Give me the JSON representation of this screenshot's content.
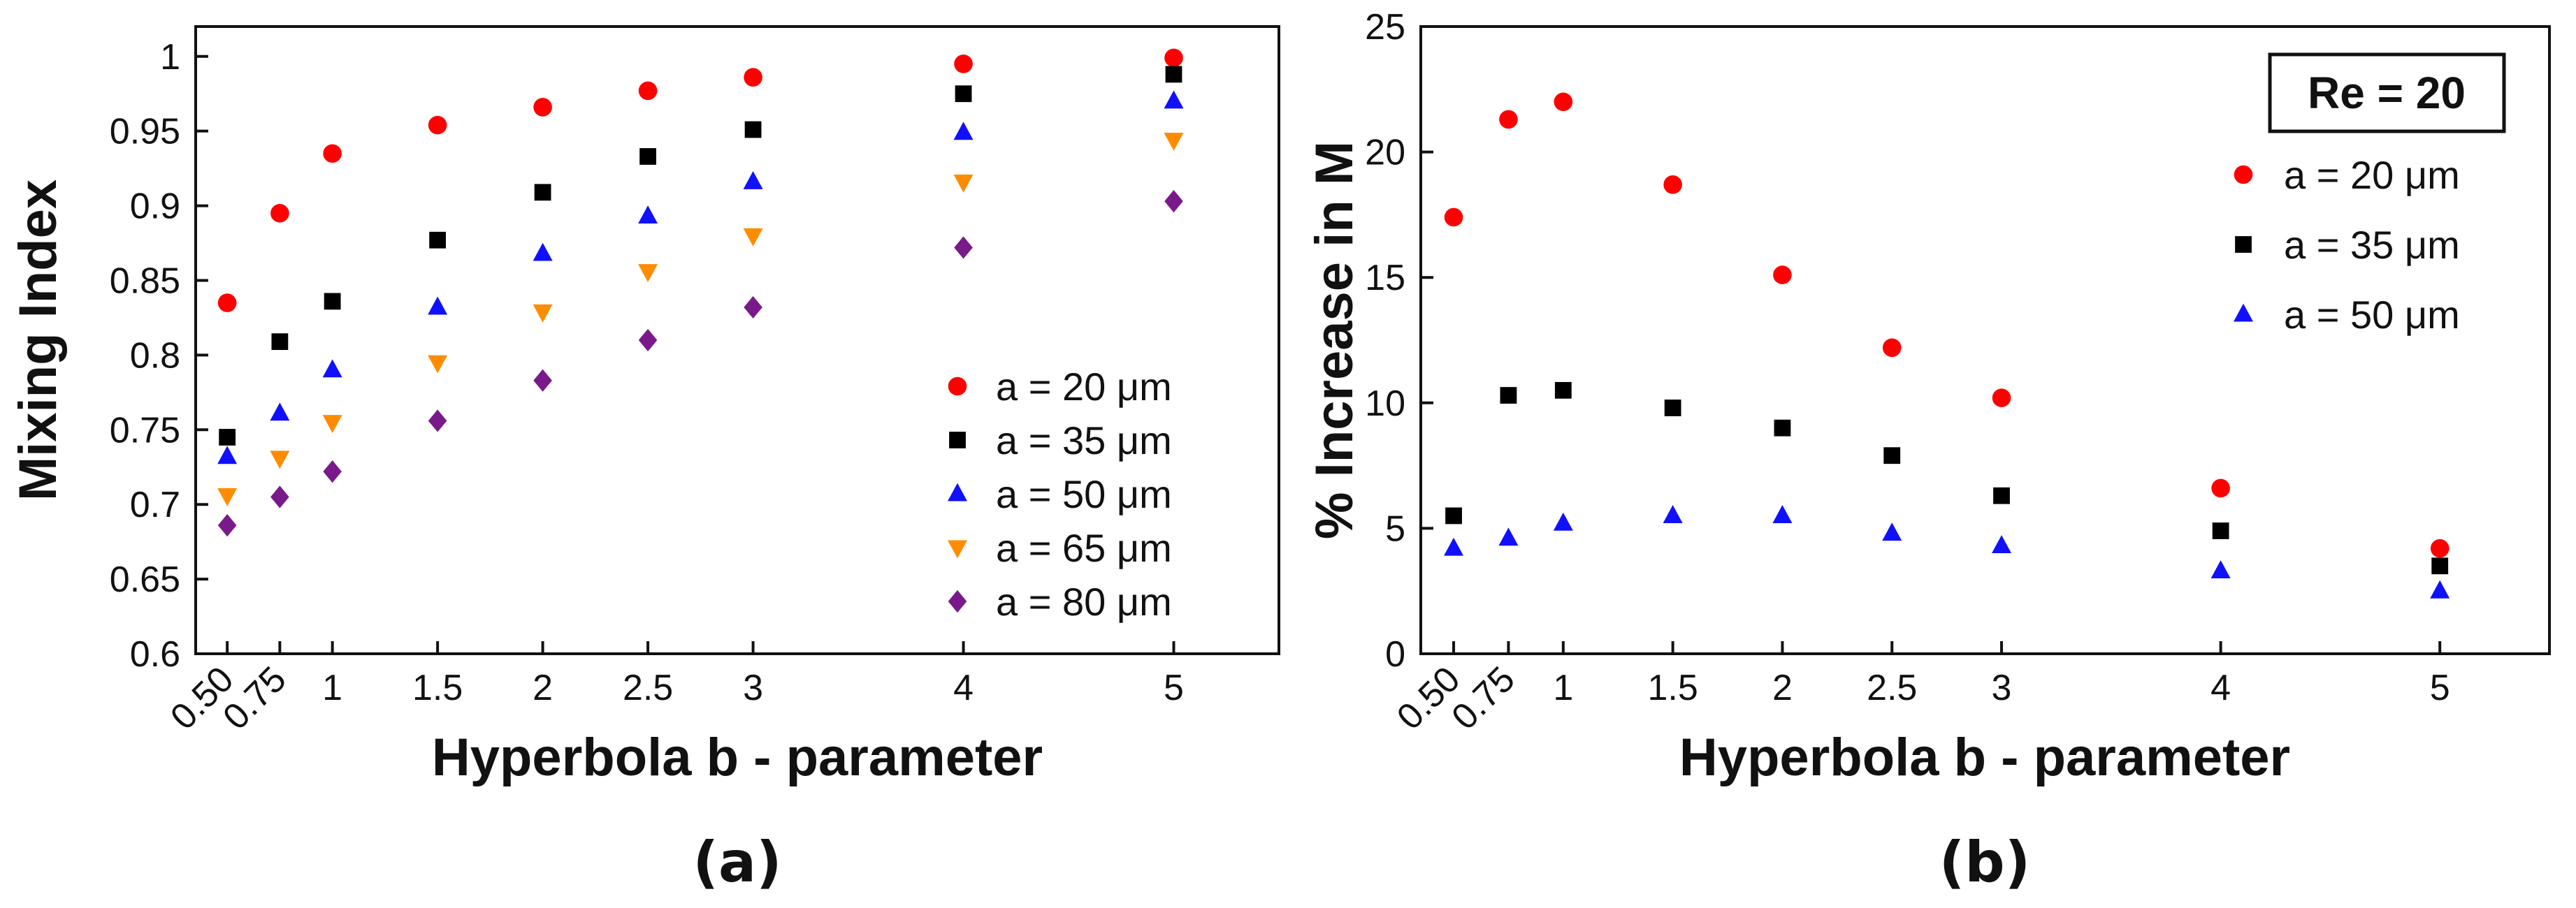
{
  "figure_labels": {
    "a": "(a)",
    "b": "(b)"
  },
  "colors": {
    "a20": "#ff0000",
    "a35": "#000000",
    "a50": "#1010ff",
    "a65": "#ff8c00",
    "a80": "#7a1a8a"
  },
  "chart_data": [
    {
      "type": "scatter",
      "title": "",
      "xlabel": "Hyperbola b - parameter",
      "ylabel": "Mixing Index",
      "ylim": [
        0.6,
        1.02
      ],
      "xlim": [
        0.35,
        5.5
      ],
      "x": [
        0.5,
        0.75,
        1,
        1.5,
        2,
        2.5,
        3,
        4,
        5
      ],
      "xtick_labels": [
        "0.50",
        "0.75",
        "1",
        "1.5",
        "2",
        "2.5",
        "3",
        "4",
        "5"
      ],
      "yticks": [
        0.6,
        0.65,
        0.7,
        0.75,
        0.8,
        0.85,
        0.9,
        0.95,
        1
      ],
      "ytick_labels": [
        "0.6",
        "0.65",
        "0.7",
        "0.75",
        "0.8",
        "0.85",
        "0.9",
        "0.95",
        "1"
      ],
      "legend_position": "bottom-right",
      "series": [
        {
          "name": "a = 20 μm",
          "marker": "circle",
          "color_key": "a20",
          "values": [
            0.835,
            0.895,
            0.935,
            0.954,
            0.966,
            0.977,
            0.986,
            0.995,
            0.999
          ]
        },
        {
          "name": "a = 35 μm",
          "marker": "square",
          "color_key": "a35",
          "values": [
            0.745,
            0.809,
            0.836,
            0.877,
            0.909,
            0.933,
            0.951,
            0.975,
            0.988
          ]
        },
        {
          "name": "a = 50 μm",
          "marker": "triangle-up",
          "color_key": "a50",
          "values": [
            0.732,
            0.761,
            0.79,
            0.832,
            0.868,
            0.893,
            0.916,
            0.949,
            0.97
          ]
        },
        {
          "name": "a = 65 μm",
          "marker": "triangle-down",
          "color_key": "a65",
          "values": [
            0.706,
            0.731,
            0.755,
            0.795,
            0.829,
            0.856,
            0.88,
            0.916,
            0.944
          ]
        },
        {
          "name": "a = 80 μm",
          "marker": "diamond",
          "color_key": "a80",
          "values": [
            0.686,
            0.705,
            0.722,
            0.756,
            0.783,
            0.81,
            0.832,
            0.872,
            0.903
          ]
        }
      ]
    },
    {
      "type": "scatter",
      "title": "",
      "annotation": "Re = 20",
      "xlabel": "Hyperbola b - parameter",
      "ylabel": "% Increase in M",
      "ylim": [
        0,
        25
      ],
      "xlim": [
        0.35,
        5.5
      ],
      "x": [
        0.5,
        0.75,
        1,
        1.5,
        2,
        2.5,
        3,
        4,
        5
      ],
      "xtick_labels": [
        "0.50",
        "0.75",
        "1",
        "1.5",
        "2",
        "2.5",
        "3",
        "4",
        "5"
      ],
      "yticks": [
        0,
        5,
        10,
        15,
        20,
        25
      ],
      "ytick_labels": [
        "0",
        "5",
        "10",
        "15",
        "20",
        "25"
      ],
      "legend_position": "top-right",
      "series": [
        {
          "name": "a = 20 μm",
          "marker": "circle",
          "color_key": "a20",
          "values": [
            17.4,
            21.3,
            22.0,
            18.7,
            15.1,
            12.2,
            10.2,
            6.6,
            4.2
          ]
        },
        {
          "name": "a = 35 μm",
          "marker": "square",
          "color_key": "a35",
          "values": [
            5.5,
            10.3,
            10.5,
            9.8,
            9.0,
            7.9,
            6.3,
            4.9,
            3.5
          ]
        },
        {
          "name": "a = 50 μm",
          "marker": "triangle-up",
          "color_key": "a50",
          "values": [
            4.2,
            4.6,
            5.2,
            5.5,
            5.5,
            4.8,
            4.3,
            3.3,
            2.5
          ]
        }
      ]
    }
  ]
}
